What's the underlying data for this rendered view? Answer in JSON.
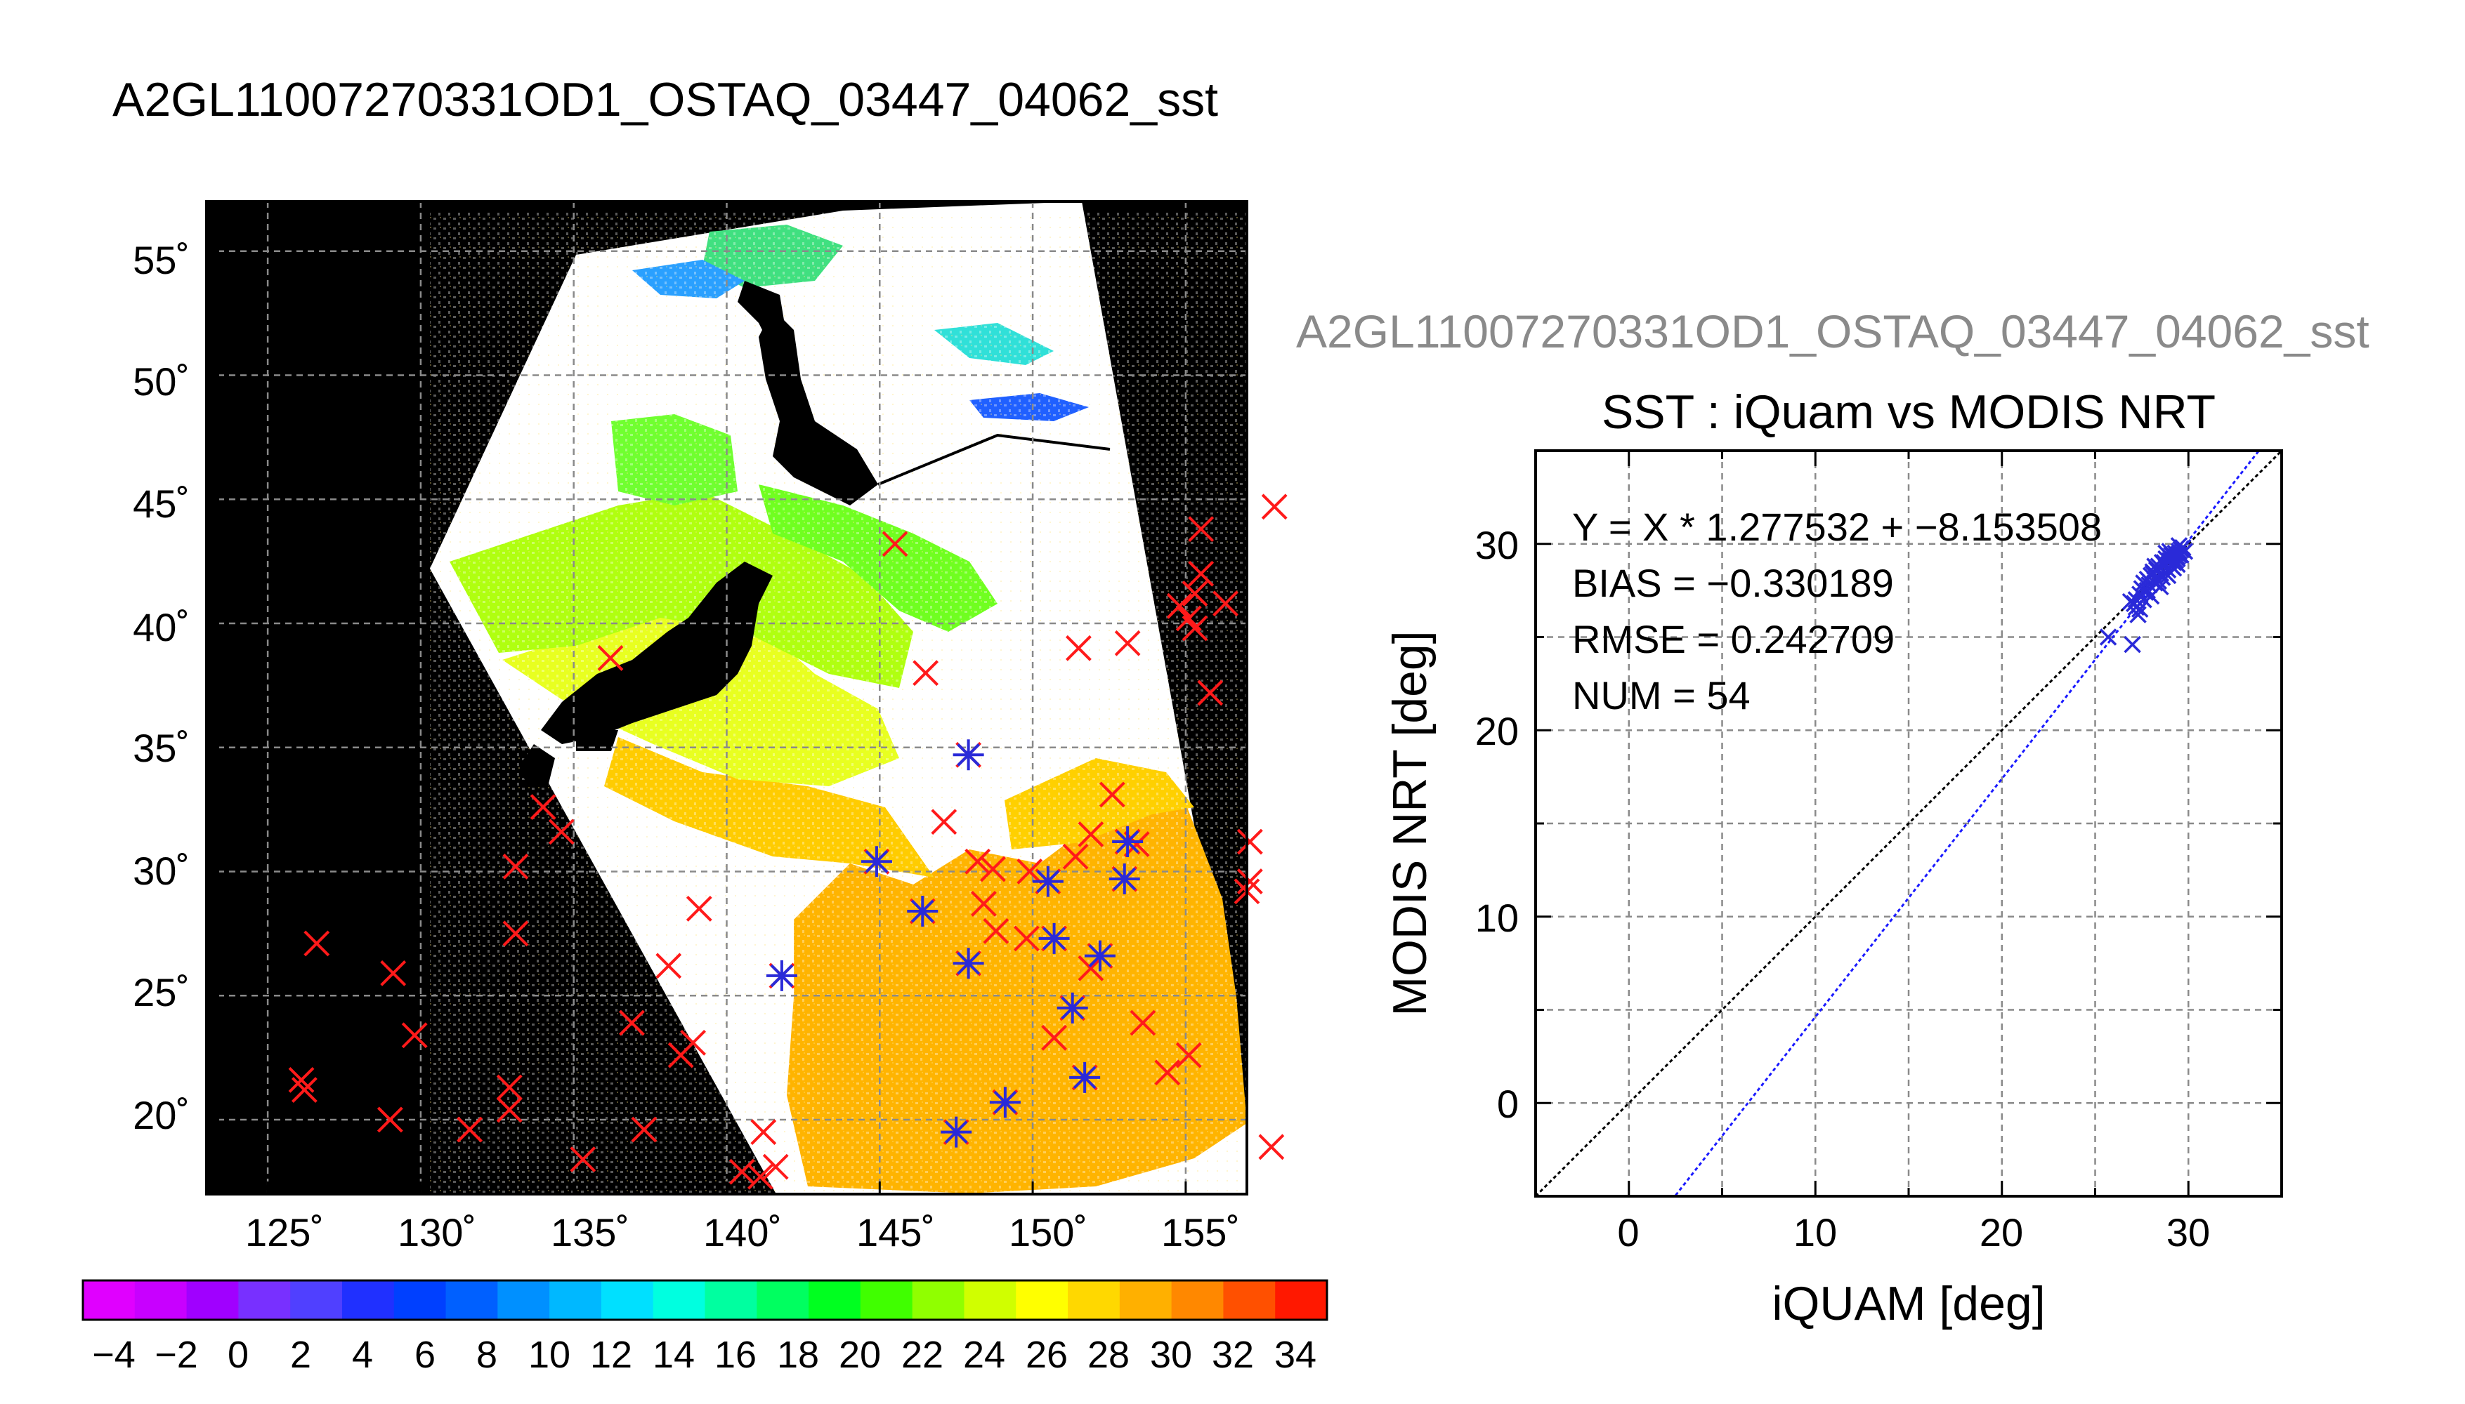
{
  "page_title": "A2GL11007270331OD1_OSTAQ_03447_04062_sst",
  "colors": {
    "black": "#000000",
    "land": "#ffffff",
    "iquam_marker": "#ff1a1a",
    "match_marker": "#2a2ad8",
    "fit_line": "#1a1aff",
    "identity_line": "#000000",
    "grid": "#8a8a8a",
    "colorbar": [
      "#e000ff",
      "#c800ff",
      "#a000ff",
      "#7830ff",
      "#5040ff",
      "#2030ff",
      "#0040ff",
      "#0060ff",
      "#0090ff",
      "#00b8ff",
      "#00e0ff",
      "#00ffe0",
      "#00ffa0",
      "#00ff60",
      "#00ff20",
      "#40ff00",
      "#90ff00",
      "#d0ff00",
      "#ffff00",
      "#ffd800",
      "#ffb000",
      "#ff8800",
      "#ff5000",
      "#ff1800"
    ]
  },
  "map": {
    "lon_ticks": [
      "125˚",
      "130˚",
      "135˚",
      "140˚",
      "145˚",
      "150˚",
      "155˚"
    ],
    "lat_ticks": [
      "55˚",
      "50˚",
      "45˚",
      "40˚",
      "35˚",
      "30˚",
      "25˚",
      "20˚"
    ],
    "colorbar_ticks": [
      "−4",
      "−2",
      "0",
      "2",
      "4",
      "6",
      "8",
      "10",
      "12",
      "14",
      "16",
      "18",
      "20",
      "22",
      "24",
      "26",
      "28",
      "30",
      "32",
      "34"
    ],
    "iquam_points": [
      [
        126.1,
        21.6
      ],
      [
        126.2,
        21.2
      ],
      [
        126.6,
        27.1
      ],
      [
        129,
        20
      ],
      [
        129.1,
        25.9
      ],
      [
        129.8,
        23.4
      ],
      [
        131.6,
        19.6
      ],
      [
        132.9,
        21.3
      ],
      [
        132.9,
        20.4
      ],
      [
        133.1,
        30.2
      ],
      [
        133.1,
        27.5
      ],
      [
        134,
        32.6
      ],
      [
        134.6,
        31.6
      ],
      [
        135.3,
        18.4
      ],
      [
        136.2,
        38.6
      ],
      [
        136.9,
        23.9
      ],
      [
        137.3,
        19.6
      ],
      [
        138.1,
        26.2
      ],
      [
        138.5,
        22.6
      ],
      [
        138.9,
        23.1
      ],
      [
        139.1,
        28.5
      ],
      [
        140.5,
        17.9
      ],
      [
        141.1,
        17.7
      ],
      [
        141.2,
        19.5
      ],
      [
        141.6,
        18.1
      ],
      [
        141.8,
        25.8
      ],
      [
        144.9,
        30.4
      ],
      [
        145.5,
        43.2
      ],
      [
        146.4,
        28.4
      ],
      [
        146.5,
        38
      ],
      [
        147.1,
        32
      ],
      [
        147.5,
        19.5
      ],
      [
        147.9,
        34.7
      ],
      [
        147.9,
        26.3
      ],
      [
        148.2,
        30.4
      ],
      [
        148.4,
        28.7
      ],
      [
        148.7,
        30.1
      ],
      [
        148.8,
        27.6
      ],
      [
        149.1,
        20.7
      ],
      [
        149.8,
        27.3
      ],
      [
        149.9,
        30
      ],
      [
        150.5,
        29.6
      ],
      [
        150.7,
        27.3
      ],
      [
        150.7,
        23.3
      ],
      [
        151.3,
        24.5
      ],
      [
        151.4,
        30.6
      ],
      [
        151.5,
        39
      ],
      [
        151.7,
        21.7
      ],
      [
        151.9,
        26.1
      ],
      [
        151.9,
        31.5
      ],
      [
        152.2,
        26.6
      ],
      [
        152.6,
        33.1
      ],
      [
        153,
        29.7
      ],
      [
        153.1,
        31.2
      ],
      [
        153.1,
        39.2
      ],
      [
        153.4,
        31.1
      ],
      [
        153.6,
        23.9
      ],
      [
        154.4,
        21.9
      ],
      [
        154.8,
        40.7
      ],
      [
        155.1,
        22.6
      ],
      [
        155.1,
        40.2
      ],
      [
        155.3,
        41.2
      ],
      [
        155.3,
        39.8
      ],
      [
        155.5,
        43.8
      ],
      [
        155.5,
        42
      ],
      [
        155.8,
        37.2
      ],
      [
        156.3,
        40.8
      ],
      [
        157,
        29.2
      ],
      [
        157.1,
        31.2
      ],
      [
        157.1,
        29.6
      ],
      [
        157.8,
        18.9
      ],
      [
        157.9,
        44.7
      ]
    ],
    "match_points": [
      [
        141.8,
        25.8
      ],
      [
        144.9,
        30.4
      ],
      [
        146.4,
        28.4
      ],
      [
        147.5,
        19.5
      ],
      [
        147.9,
        34.7
      ],
      [
        147.9,
        26.3
      ],
      [
        149.1,
        20.7
      ],
      [
        150.5,
        29.6
      ],
      [
        150.7,
        27.3
      ],
      [
        151.3,
        24.5
      ],
      [
        151.7,
        21.7
      ],
      [
        152.2,
        26.6
      ],
      [
        153,
        29.7
      ],
      [
        153.1,
        31.2
      ]
    ]
  },
  "scatter": {
    "title_repeat": "A2GL11007270331OD1_OSTAQ_03447_04062_sst",
    "title": "SST : iQuam vs MODIS NRT",
    "xlabel": "iQUAM [deg]",
    "ylabel": "MODIS NRT [deg]",
    "x_ticks": [
      "0",
      "10",
      "20",
      "30"
    ],
    "y_ticks": [
      "0",
      "10",
      "20",
      "30"
    ],
    "stats": {
      "equation": "Y = X * 1.277532 + −8.153508",
      "bias": "BIAS = −0.330189",
      "rmse": "RMSE = 0.242709",
      "num": "NUM = 54"
    }
  },
  "chart_data": [
    {
      "type": "scatter",
      "title": "A2GL11007270331OD1_OSTAQ_03447_04062_sst",
      "xlim": [
        123,
        157
      ],
      "ylim": [
        17,
        57
      ],
      "x_tick_values": [
        125,
        130,
        135,
        140,
        145,
        150,
        155
      ],
      "y_tick_values": [
        20,
        25,
        30,
        35,
        40,
        45,
        50,
        55
      ],
      "grid": true,
      "colorbar": {
        "min": -5,
        "max": 35,
        "ticks": [
          -4,
          -2,
          0,
          2,
          4,
          6,
          8,
          10,
          12,
          14,
          16,
          18,
          20,
          22,
          24,
          26,
          28,
          30,
          32,
          34
        ]
      }
    },
    {
      "type": "scatter",
      "title": "SST : iQuam vs MODIS NRT",
      "xlabel": "iQUAM [deg]",
      "ylabel": "MODIS NRT [deg]",
      "xlim": [
        -5,
        35
      ],
      "ylim": [
        -5,
        35
      ],
      "grid": true,
      "fit": {
        "slope": 1.277532,
        "intercept": -8.153508
      },
      "bias": -0.330189,
      "rmse": 0.242709,
      "num": 54,
      "x": [
        25.7,
        27.0,
        27.1,
        27.2,
        27.4,
        27.4,
        27.5,
        27.6,
        27.7,
        27.8,
        27.9,
        28.0,
        28.1,
        28.2,
        28.3,
        28.4,
        28.5,
        28.6,
        28.7,
        28.8,
        28.9,
        29.0,
        29.1,
        29.2,
        29.3,
        29.4,
        29.5,
        29.6,
        27.3,
        27.8,
        28.2,
        28.6,
        29.0,
        29.4,
        29.7,
        28.0,
        28.4,
        28.8,
        29.2,
        29.5,
        27.6,
        28.9,
        29.3,
        29.6,
        28.1,
        28.7,
        29.1,
        29.4,
        27.2,
        28.5,
        29.0,
        29.5,
        26.9,
        29.8
      ],
      "y": [
        25.0,
        24.6,
        26.8,
        27.0,
        27.3,
        26.5,
        27.6,
        27.9,
        27.4,
        28.1,
        27.8,
        28.3,
        28.5,
        27.9,
        28.6,
        28.8,
        28.4,
        29.0,
        28.9,
        29.2,
        28.6,
        29.3,
        29.4,
        29.0,
        29.5,
        29.2,
        29.6,
        29.4,
        26.2,
        27.5,
        28.8,
        28.2,
        29.6,
        28.9,
        29.8,
        27.2,
        28.0,
        29.5,
        28.7,
        29.9,
        27.0,
        28.3,
        29.1,
        29.7,
        28.4,
        29.0,
        28.8,
        29.3,
        26.6,
        27.7,
        29.1,
        29.4,
        26.9,
        29.6
      ]
    }
  ]
}
